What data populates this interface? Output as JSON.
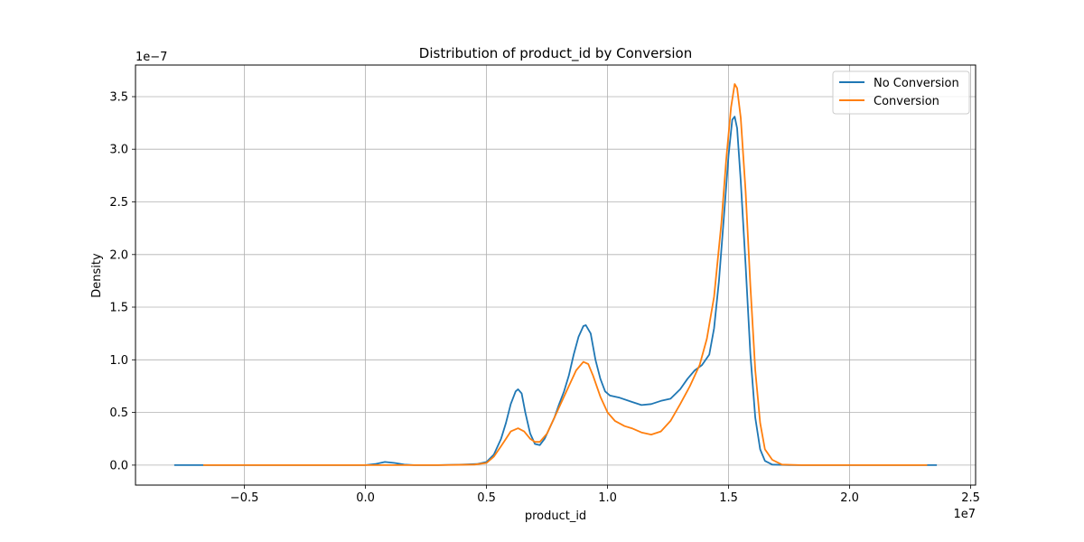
{
  "chart_data": {
    "type": "line",
    "title": "Distribution of product_id by Conversion",
    "xlabel": "product_id",
    "ylabel": "Density",
    "x_offset_label": "1e7",
    "y_offset_label": "1e−7",
    "xlim": [
      -0.95,
      2.52
    ],
    "ylim": [
      -0.19,
      3.8
    ],
    "x_ticks": [
      -0.5,
      0.0,
      0.5,
      1.0,
      1.5,
      2.0,
      2.5
    ],
    "x_tick_labels": [
      "−0.5",
      "0.0",
      "0.5",
      "1.0",
      "1.5",
      "2.0",
      "2.5"
    ],
    "y_ticks": [
      0.0,
      0.5,
      1.0,
      1.5,
      2.0,
      2.5,
      3.0,
      3.5
    ],
    "y_tick_labels": [
      "0.0",
      "0.5",
      "1.0",
      "1.5",
      "2.0",
      "2.5",
      "3.0",
      "3.5"
    ],
    "grid": true,
    "legend_position": "top-right",
    "series": [
      {
        "name": "No Conversion",
        "color": "#1f77b4",
        "points": [
          [
            -0.79,
            0.0
          ],
          [
            -0.5,
            0.0
          ],
          [
            -0.2,
            0.0
          ],
          [
            0.0,
            0.0
          ],
          [
            0.04,
            0.01
          ],
          [
            0.08,
            0.03
          ],
          [
            0.12,
            0.02
          ],
          [
            0.16,
            0.005
          ],
          [
            0.2,
            0.0
          ],
          [
            0.3,
            0.0
          ],
          [
            0.4,
            0.005
          ],
          [
            0.46,
            0.01
          ],
          [
            0.5,
            0.03
          ],
          [
            0.53,
            0.1
          ],
          [
            0.56,
            0.25
          ],
          [
            0.58,
            0.4
          ],
          [
            0.6,
            0.58
          ],
          [
            0.62,
            0.7
          ],
          [
            0.63,
            0.72
          ],
          [
            0.645,
            0.68
          ],
          [
            0.66,
            0.5
          ],
          [
            0.68,
            0.3
          ],
          [
            0.7,
            0.2
          ],
          [
            0.72,
            0.19
          ],
          [
            0.74,
            0.25
          ],
          [
            0.76,
            0.35
          ],
          [
            0.78,
            0.45
          ],
          [
            0.8,
            0.58
          ],
          [
            0.82,
            0.7
          ],
          [
            0.84,
            0.85
          ],
          [
            0.86,
            1.05
          ],
          [
            0.88,
            1.22
          ],
          [
            0.9,
            1.32
          ],
          [
            0.91,
            1.33
          ],
          [
            0.93,
            1.25
          ],
          [
            0.95,
            1.0
          ],
          [
            0.97,
            0.82
          ],
          [
            0.99,
            0.7
          ],
          [
            1.01,
            0.66
          ],
          [
            1.05,
            0.64
          ],
          [
            1.1,
            0.6
          ],
          [
            1.14,
            0.57
          ],
          [
            1.18,
            0.58
          ],
          [
            1.22,
            0.61
          ],
          [
            1.26,
            0.63
          ],
          [
            1.3,
            0.72
          ],
          [
            1.33,
            0.82
          ],
          [
            1.36,
            0.9
          ],
          [
            1.39,
            0.95
          ],
          [
            1.42,
            1.05
          ],
          [
            1.44,
            1.3
          ],
          [
            1.46,
            1.75
          ],
          [
            1.48,
            2.35
          ],
          [
            1.5,
            2.95
          ],
          [
            1.515,
            3.28
          ],
          [
            1.525,
            3.31
          ],
          [
            1.535,
            3.2
          ],
          [
            1.55,
            2.7
          ],
          [
            1.57,
            1.9
          ],
          [
            1.59,
            1.05
          ],
          [
            1.61,
            0.45
          ],
          [
            1.63,
            0.15
          ],
          [
            1.65,
            0.04
          ],
          [
            1.68,
            0.005
          ],
          [
            1.75,
            0.0
          ],
          [
            2.0,
            0.0
          ],
          [
            2.36,
            0.0
          ]
        ]
      },
      {
        "name": "Conversion",
        "color": "#ff7f0e",
        "points": [
          [
            -0.67,
            0.0
          ],
          [
            -0.3,
            0.0
          ],
          [
            0.0,
            0.0
          ],
          [
            0.3,
            0.0
          ],
          [
            0.45,
            0.005
          ],
          [
            0.5,
            0.02
          ],
          [
            0.53,
            0.08
          ],
          [
            0.56,
            0.18
          ],
          [
            0.58,
            0.25
          ],
          [
            0.6,
            0.32
          ],
          [
            0.63,
            0.35
          ],
          [
            0.655,
            0.32
          ],
          [
            0.68,
            0.25
          ],
          [
            0.7,
            0.22
          ],
          [
            0.72,
            0.22
          ],
          [
            0.75,
            0.3
          ],
          [
            0.78,
            0.45
          ],
          [
            0.81,
            0.6
          ],
          [
            0.84,
            0.75
          ],
          [
            0.87,
            0.9
          ],
          [
            0.9,
            0.98
          ],
          [
            0.92,
            0.96
          ],
          [
            0.94,
            0.85
          ],
          [
            0.97,
            0.65
          ],
          [
            1.0,
            0.5
          ],
          [
            1.03,
            0.42
          ],
          [
            1.07,
            0.37
          ],
          [
            1.1,
            0.35
          ],
          [
            1.14,
            0.31
          ],
          [
            1.18,
            0.29
          ],
          [
            1.22,
            0.32
          ],
          [
            1.26,
            0.42
          ],
          [
            1.3,
            0.58
          ],
          [
            1.34,
            0.75
          ],
          [
            1.38,
            0.95
          ],
          [
            1.41,
            1.2
          ],
          [
            1.44,
            1.6
          ],
          [
            1.47,
            2.3
          ],
          [
            1.49,
            2.9
          ],
          [
            1.51,
            3.4
          ],
          [
            1.525,
            3.62
          ],
          [
            1.535,
            3.58
          ],
          [
            1.55,
            3.3
          ],
          [
            1.57,
            2.6
          ],
          [
            1.59,
            1.7
          ],
          [
            1.61,
            0.9
          ],
          [
            1.63,
            0.4
          ],
          [
            1.65,
            0.15
          ],
          [
            1.68,
            0.05
          ],
          [
            1.72,
            0.005
          ],
          [
            1.8,
            0.0
          ],
          [
            2.0,
            0.0
          ],
          [
            2.32,
            0.0
          ]
        ]
      }
    ]
  }
}
